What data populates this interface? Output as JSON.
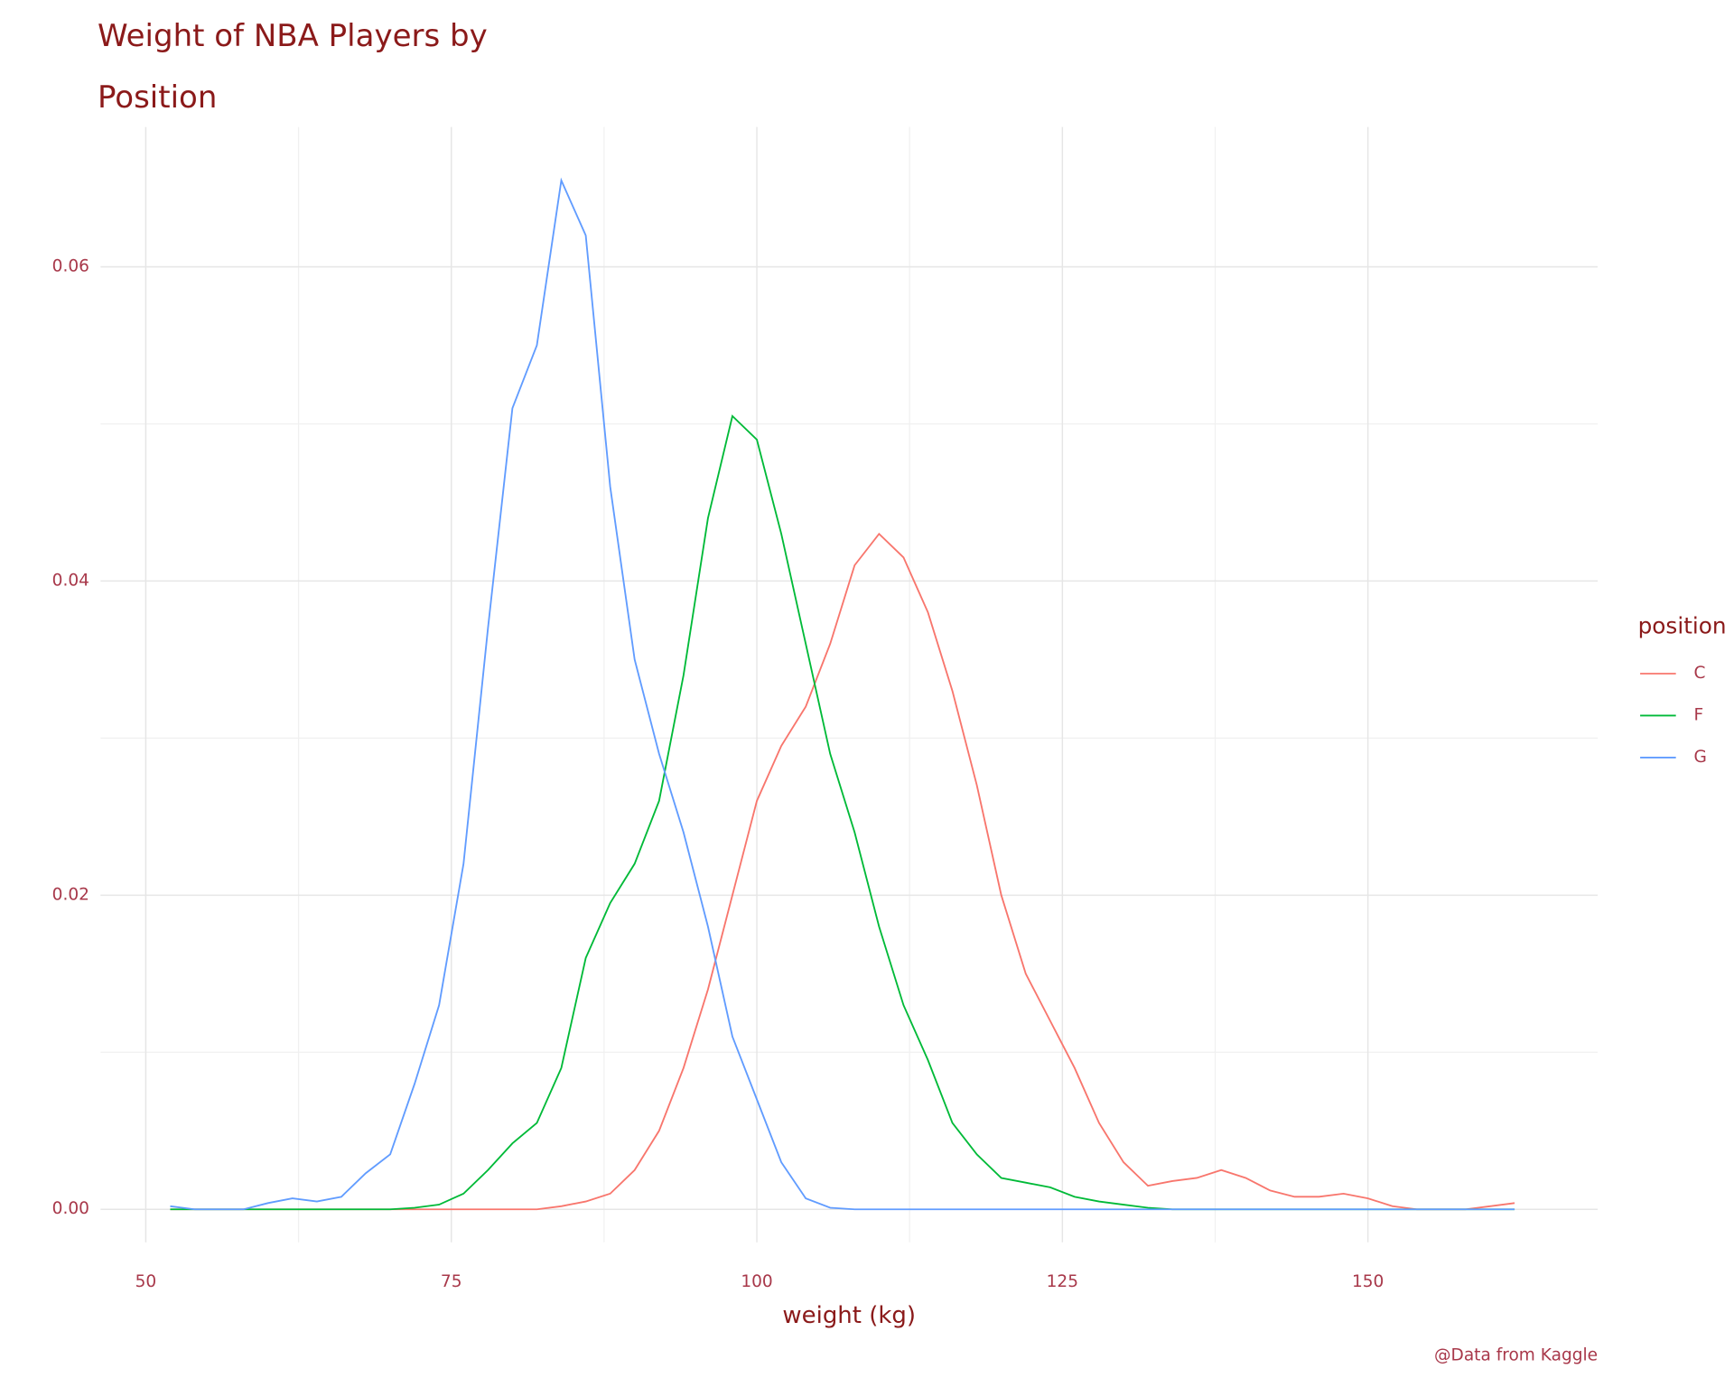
{
  "chart_data": {
    "type": "line",
    "title": "Weight of NBA Players by Position",
    "x_label": "weight (kg)",
    "caption": "@Data from Kaggle",
    "legend_title": "position",
    "legend": "right",
    "grid": true,
    "x": [
      52,
      54,
      56,
      58,
      60,
      62,
      64,
      66,
      68,
      70,
      72,
      74,
      76,
      78,
      80,
      82,
      84,
      86,
      88,
      90,
      92,
      94,
      96,
      98,
      100,
      102,
      104,
      106,
      108,
      110,
      112,
      114,
      116,
      118,
      120,
      122,
      124,
      126,
      128,
      130,
      132,
      134,
      136,
      138,
      140,
      142,
      144,
      146,
      148,
      150,
      152,
      154,
      156,
      158,
      160,
      162
    ],
    "series": [
      {
        "name": "C",
        "color": "#f8766d",
        "values": [
          0,
          0,
          0,
          0,
          0,
          0,
          0,
          0,
          0,
          0,
          0,
          0,
          0,
          0,
          0,
          0,
          0.0002,
          0.0005,
          0.001,
          0.0025,
          0.005,
          0.009,
          0.014,
          0.02,
          0.026,
          0.0295,
          0.032,
          0.036,
          0.041,
          0.043,
          0.0415,
          0.038,
          0.033,
          0.027,
          0.02,
          0.015,
          0.012,
          0.009,
          0.0055,
          0.003,
          0.0015,
          0.0018,
          0.002,
          0.0025,
          0.002,
          0.0012,
          0.0008,
          0.0008,
          0.001,
          0.0007,
          0.0002,
          0,
          0,
          0,
          0.0002,
          0.0004
        ]
      },
      {
        "name": "F",
        "color": "#00ba38",
        "values": [
          0,
          0,
          0,
          0,
          0,
          0,
          0,
          0,
          0,
          0,
          0.0001,
          0.0003,
          0.001,
          0.0025,
          0.0042,
          0.0055,
          0.009,
          0.016,
          0.0195,
          0.022,
          0.026,
          0.034,
          0.044,
          0.0505,
          0.049,
          0.043,
          0.036,
          0.029,
          0.024,
          0.018,
          0.013,
          0.0095,
          0.0055,
          0.0035,
          0.002,
          0.0017,
          0.0014,
          0.0008,
          0.0005,
          0.0003,
          0.0001,
          0,
          0,
          0,
          0,
          0,
          0,
          0,
          0,
          0,
          0,
          0,
          0,
          0,
          0,
          0
        ]
      },
      {
        "name": "G",
        "color": "#619cff",
        "values": [
          0.0002,
          0,
          0,
          0,
          0.0004,
          0.0007,
          0.0005,
          0.0008,
          0.0023,
          0.0035,
          0.008,
          0.013,
          0.022,
          0.037,
          0.051,
          0.055,
          0.0655,
          0.062,
          0.046,
          0.035,
          0.029,
          0.024,
          0.018,
          0.011,
          0.007,
          0.003,
          0.0007,
          0.0001,
          0,
          0,
          0,
          0,
          0,
          0,
          0,
          0,
          0,
          0,
          0,
          0,
          0,
          0,
          0,
          0,
          0,
          0,
          0,
          0,
          0,
          0,
          0,
          0,
          0,
          0,
          0,
          0
        ]
      }
    ],
    "xlim": [
      46.3,
      168.8
    ],
    "xticks": [
      50,
      75,
      100,
      125,
      150
    ],
    "ylim": [
      -0.0021,
      0.0689
    ],
    "yticks": [
      {
        "value": 0,
        "label": "0.00"
      },
      {
        "value": 0.02,
        "label": "0.02"
      },
      {
        "value": 0.04,
        "label": "0.04"
      },
      {
        "value": 0.06,
        "label": "0.06"
      }
    ]
  }
}
